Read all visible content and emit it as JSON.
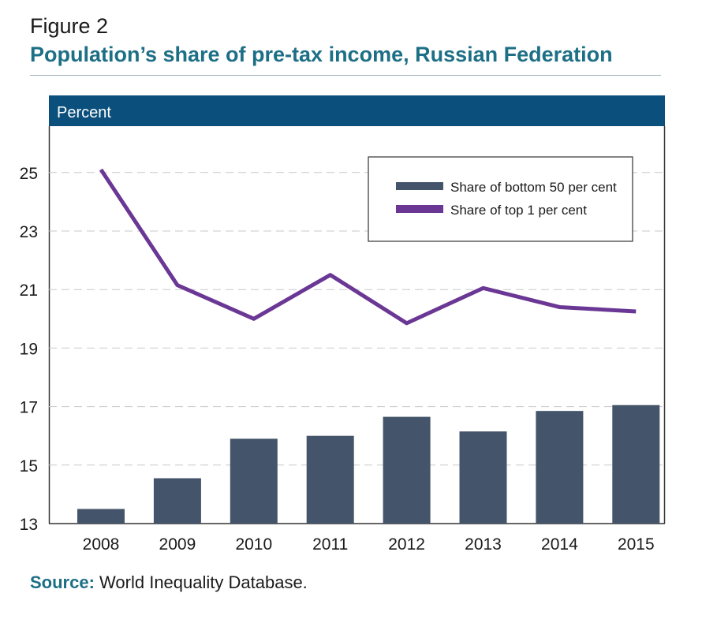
{
  "figure": {
    "label": "Figure 2",
    "title": "Population’s share of pre-tax income, Russian Federation"
  },
  "panel": {
    "header": "Percent"
  },
  "source": {
    "label": "Source:",
    "text": "World Inequality Database."
  },
  "colors": {
    "title": "#1d6f86",
    "panel_header_bg": "#0b4f7c",
    "bars": "#44546a",
    "line": "#6a3795",
    "grid": "#c9c9c9"
  },
  "chart_data": {
    "type": "bar",
    "categories": [
      "2008",
      "2009",
      "2010",
      "2011",
      "2012",
      "2013",
      "2014",
      "2015"
    ],
    "series": [
      {
        "name": "Share of bottom 50 per cent",
        "type": "bar",
        "values": [
          13.5,
          14.55,
          15.9,
          16.0,
          16.65,
          16.15,
          16.85,
          17.05
        ]
      },
      {
        "name": "Share of top 1 per cent",
        "type": "line",
        "values": [
          25.1,
          21.15,
          20.0,
          21.5,
          19.85,
          21.05,
          20.4,
          20.25
        ]
      }
    ],
    "ylim": [
      13,
      26
    ],
    "yticks": [
      "13",
      "15",
      "17",
      "19",
      "21",
      "23",
      "25"
    ],
    "ylabel": "Percent",
    "grid": true,
    "legend_position": "top-right"
  }
}
